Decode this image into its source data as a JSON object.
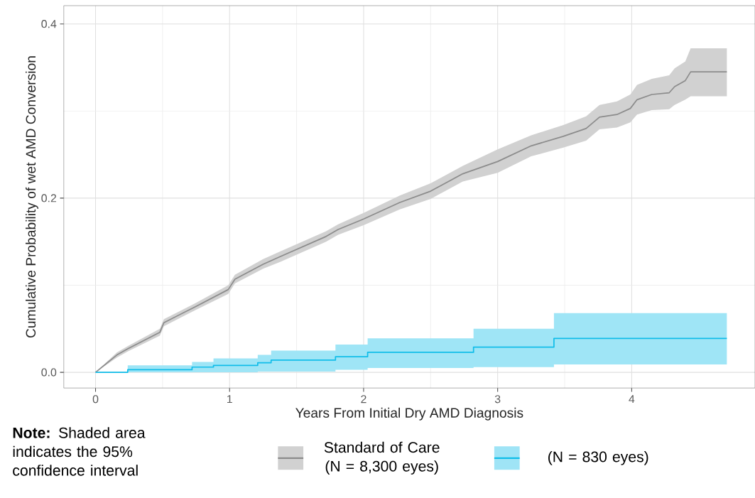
{
  "chart_data": {
    "type": "line",
    "xlabel": "Years From Initial Dry AMD Diagnosis",
    "ylabel": "Cumulative Probability of wet AMD Conversion",
    "xlim": [
      -0.237,
      4.92
    ],
    "ylim": [
      -0.018,
      0.421
    ],
    "xticks": [
      0,
      1,
      2,
      3,
      4
    ],
    "yticks": [
      {
        "value": 0,
        "label": "0.0"
      },
      {
        "value": 0.2,
        "label": "0.2"
      },
      {
        "value": 0.4,
        "label": "0.4"
      }
    ],
    "grid": true,
    "legend": "bottom",
    "annotations": [
      "**Note:** Shaded area indicates the 95% confidence interval"
    ],
    "series": [
      {
        "name": "Standard of Care (N = 8,300 eyes)",
        "color": "#8c8c8c",
        "x": [
          0,
          0.16,
          0.24,
          0.48,
          0.51,
          0.74,
          0.99,
          1.04,
          1.25,
          1.38,
          1.72,
          1.81,
          2.0,
          2.27,
          2.5,
          2.74,
          3.0,
          3.25,
          3.49,
          3.66,
          3.76,
          3.89,
          3.99,
          4.04,
          4.15,
          4.28,
          4.32,
          4.4,
          4.44,
          4.71
        ],
        "values": [
          0,
          0.02,
          0.027,
          0.046,
          0.057,
          0.075,
          0.095,
          0.107,
          0.124,
          0.133,
          0.156,
          0.164,
          0.176,
          0.195,
          0.208,
          0.228,
          0.242,
          0.26,
          0.271,
          0.28,
          0.293,
          0.296,
          0.303,
          0.313,
          0.319,
          0.321,
          0.328,
          0.335,
          0.345,
          0.345
        ],
        "lower": [
          0,
          0.017,
          0.024,
          0.042,
          0.053,
          0.071,
          0.09,
          0.102,
          0.119,
          0.127,
          0.15,
          0.158,
          0.169,
          0.187,
          0.199,
          0.219,
          0.229,
          0.248,
          0.258,
          0.266,
          0.279,
          0.281,
          0.287,
          0.296,
          0.301,
          0.302,
          0.307,
          0.313,
          0.317,
          0.317
        ],
        "upper": [
          0,
          0.023,
          0.03,
          0.05,
          0.061,
          0.079,
          0.1,
          0.112,
          0.13,
          0.139,
          0.162,
          0.17,
          0.183,
          0.203,
          0.217,
          0.237,
          0.256,
          0.272,
          0.284,
          0.294,
          0.307,
          0.311,
          0.319,
          0.33,
          0.337,
          0.341,
          0.349,
          0.357,
          0.372,
          0.372
        ]
      },
      {
        "name": "(N = 830 eyes)",
        "color": "#10bde9",
        "type": "step",
        "x": [
          0,
          0.24,
          0.72,
          0.88,
          1.21,
          1.31,
          1.79,
          2.03,
          2.82,
          3.42,
          4.71
        ],
        "values": [
          0,
          0.003,
          0.006,
          0.008,
          0.011,
          0.014,
          0.018,
          0.023,
          0.029,
          0.039,
          0.039
        ],
        "lower": [
          0,
          0,
          0,
          0,
          0.001,
          0.001,
          0.003,
          0.005,
          0.006,
          0.009,
          0.009
        ],
        "upper": [
          0,
          0.008,
          0.012,
          0.016,
          0.02,
          0.025,
          0.032,
          0.039,
          0.05,
          0.068,
          0.068
        ]
      }
    ]
  }
}
